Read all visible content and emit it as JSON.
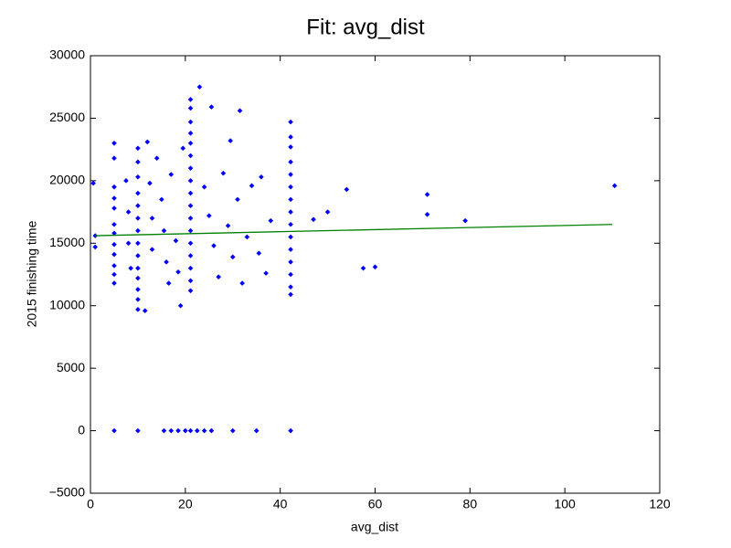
{
  "chart_data": {
    "type": "scatter",
    "title": "Fit: avg_dist",
    "x_label": "avg_dist",
    "y_label": "2015 finishing time",
    "color": "#0000ff",
    "x": [
      0.6,
      1,
      1,
      47,
      50,
      54,
      57.5,
      60,
      71,
      71,
      79,
      110.5,
      23,
      25.5,
      31.5,
      29.5,
      5,
      10,
      15.5,
      17,
      18.5,
      20,
      21.1,
      22.5,
      24,
      25.5,
      30,
      35,
      42.2,
      5,
      5,
      5,
      5,
      5,
      5,
      5,
      5,
      5,
      5,
      5,
      5,
      10,
      10,
      10,
      10,
      10,
      10,
      10,
      10,
      10,
      10,
      10,
      10,
      10,
      10,
      21.1,
      21.1,
      21.1,
      21.1,
      21.1,
      21.1,
      21.1,
      21.1,
      21.1,
      21.1,
      21.1,
      21.1,
      21.1,
      21.1,
      21.1,
      21.1,
      21.1,
      42.2,
      42.2,
      42.2,
      42.2,
      42.2,
      42.2,
      42.2,
      42.2,
      42.2,
      42.2,
      42.2,
      42.2,
      42.2,
      42.2,
      42.2,
      7.5,
      8,
      8,
      8.5,
      12,
      12.5,
      13,
      13,
      11.5,
      14,
      15,
      15.5,
      16,
      16.5,
      17,
      18,
      18.5,
      19,
      19.5,
      24,
      25,
      26,
      27,
      28,
      29,
      30,
      31,
      32,
      33,
      34,
      35.5,
      36,
      37,
      38
    ],
    "y": [
      19800,
      15600,
      14700,
      16900,
      17500,
      19300,
      13000,
      13100,
      18900,
      17300,
      16800,
      19600,
      27500,
      25900,
      25600,
      23200,
      0,
      0,
      0,
      0,
      0,
      0,
      0,
      0,
      0,
      0,
      0,
      0,
      0,
      23000,
      21800,
      19500,
      18600,
      17800,
      16500,
      15800,
      14900,
      14100,
      13200,
      12500,
      11800,
      22600,
      21500,
      20300,
      19000,
      18000,
      17000,
      16000,
      15000,
      14000,
      13000,
      12200,
      11300,
      10500,
      9700,
      26500,
      25800,
      24700,
      23800,
      23000,
      22000,
      21000,
      20000,
      19000,
      18000,
      17000,
      16000,
      15000,
      14000,
      13000,
      12000,
      11200,
      24700,
      23500,
      22700,
      21500,
      20500,
      19500,
      18500,
      17500,
      16500,
      15500,
      14500,
      13500,
      12500,
      11500,
      10900,
      20000,
      17500,
      15000,
      13000,
      23100,
      19800,
      17000,
      14500,
      9600,
      21800,
      18500,
      16000,
      13500,
      11800,
      20500,
      15200,
      12700,
      10000,
      22600,
      19500,
      17200,
      14800,
      12300,
      20600,
      16400,
      13900,
      18500,
      11800,
      15500,
      19600,
      14200,
      20300,
      12600,
      16800
    ],
    "fit": {
      "color": "#008000",
      "x": [
        1,
        110
      ],
      "y": [
        15600,
        16500
      ]
    },
    "xlim": [
      0,
      120
    ],
    "xticks": [
      0,
      20,
      40,
      60,
      80,
      100,
      120
    ],
    "ylim": [
      -5000,
      30000
    ],
    "yticks": [
      {
        "value": -5000,
        "label": "−5000"
      },
      0,
      5000,
      10000,
      15000,
      20000,
      25000,
      30000
    ]
  }
}
